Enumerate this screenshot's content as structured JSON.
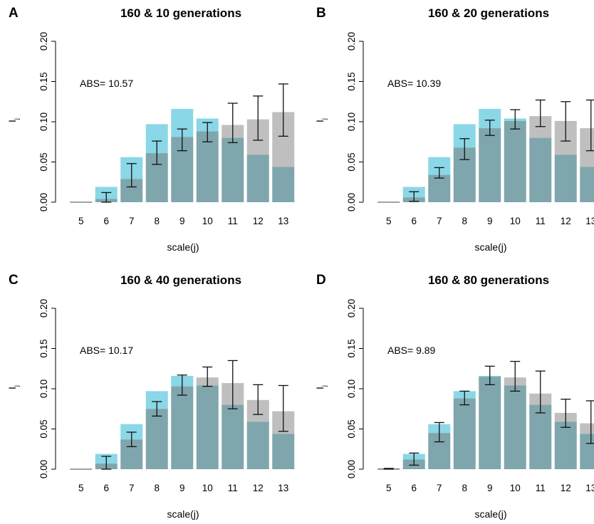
{
  "colors": {
    "observed_bar": "#8ad7e7",
    "simulated_bar": "#bfbfbf",
    "overlap": "#7fa6ac",
    "error_bar": "#111111"
  },
  "chart_data": [
    {
      "type": "bar",
      "panel": "A",
      "title": "160 &  10 generations",
      "xlabel": "scale(j)",
      "ylabel": "I",
      "ylabel_sub": "j",
      "categories": [
        "5",
        "6",
        "7",
        "8",
        "9",
        "10",
        "11",
        "12",
        "13"
      ],
      "ylim": [
        0,
        0.2
      ],
      "yticks": [
        "0.00",
        "0.05",
        "0.10",
        "0.15",
        "0.20"
      ],
      "annotation": "ABS= 10.57",
      "series": [
        {
          "values": [
            0.0,
            0.019,
            0.056,
            0.097,
            0.116,
            0.104,
            0.08,
            0.059,
            0.044
          ]
        },
        {
          "values": [
            0.0,
            0.004,
            0.029,
            0.061,
            0.081,
            0.088,
            0.096,
            0.103,
            0.112
          ],
          "err_low": [
            0.0,
            0.0,
            0.019,
            0.047,
            0.064,
            0.075,
            0.074,
            0.077,
            0.082
          ],
          "err_high": [
            0.0,
            0.012,
            0.048,
            0.076,
            0.091,
            0.099,
            0.123,
            0.132,
            0.147
          ]
        }
      ]
    },
    {
      "type": "bar",
      "panel": "B",
      "title": "160 &  20 generations",
      "xlabel": "scale(j)",
      "ylabel": "I",
      "ylabel_sub": "j",
      "categories": [
        "5",
        "6",
        "7",
        "8",
        "9",
        "10",
        "11",
        "12",
        "13"
      ],
      "ylim": [
        0,
        0.2
      ],
      "yticks": [
        "0.00",
        "0.05",
        "0.10",
        "0.15",
        "0.20"
      ],
      "annotation": "ABS= 10.39",
      "series": [
        {
          "values": [
            0.0,
            0.019,
            0.056,
            0.097,
            0.116,
            0.104,
            0.08,
            0.059,
            0.044
          ]
        },
        {
          "values": [
            0.0,
            0.006,
            0.034,
            0.068,
            0.092,
            0.101,
            0.107,
            0.101,
            0.092
          ],
          "err_low": [
            0.0,
            0.001,
            0.03,
            0.053,
            0.083,
            0.091,
            0.094,
            0.076,
            0.064
          ],
          "err_high": [
            0.0,
            0.013,
            0.043,
            0.079,
            0.102,
            0.115,
            0.127,
            0.125,
            0.127
          ]
        }
      ]
    },
    {
      "type": "bar",
      "panel": "C",
      "title": "160 &  40 generations",
      "xlabel": "scale(j)",
      "ylabel": "I",
      "ylabel_sub": "j",
      "categories": [
        "5",
        "6",
        "7",
        "8",
        "9",
        "10",
        "11",
        "12",
        "13"
      ],
      "ylim": [
        0,
        0.2
      ],
      "yticks": [
        "0.00",
        "0.05",
        "0.10",
        "0.15",
        "0.20"
      ],
      "annotation": "ABS= 10.17",
      "series": [
        {
          "values": [
            0.0,
            0.019,
            0.056,
            0.097,
            0.116,
            0.104,
            0.08,
            0.059,
            0.044
          ]
        },
        {
          "values": [
            0.0,
            0.007,
            0.037,
            0.075,
            0.103,
            0.114,
            0.107,
            0.086,
            0.072
          ],
          "err_low": [
            0.0,
            0.0,
            0.028,
            0.066,
            0.092,
            0.103,
            0.075,
            0.068,
            0.047
          ],
          "err_high": [
            0.0,
            0.016,
            0.046,
            0.084,
            0.117,
            0.127,
            0.135,
            0.105,
            0.104
          ]
        }
      ]
    },
    {
      "type": "bar",
      "panel": "D",
      "title": "160 &  80 generations",
      "xlabel": "scale(j)",
      "ylabel": "I",
      "ylabel_sub": "j",
      "categories": [
        "5",
        "6",
        "7",
        "8",
        "9",
        "10",
        "11",
        "12",
        "13"
      ],
      "ylim": [
        0,
        0.2
      ],
      "yticks": [
        "0.00",
        "0.05",
        "0.10",
        "0.15",
        "0.20"
      ],
      "annotation": "ABS= 9.89",
      "series": [
        {
          "values": [
            0.0,
            0.019,
            0.056,
            0.097,
            0.116,
            0.104,
            0.08,
            0.059,
            0.044
          ]
        },
        {
          "values": [
            0.001,
            0.012,
            0.045,
            0.088,
            0.115,
            0.114,
            0.094,
            0.07,
            0.057
          ],
          "err_low": [
            0.0,
            0.005,
            0.034,
            0.08,
            0.105,
            0.097,
            0.07,
            0.052,
            0.032
          ],
          "err_high": [
            0.001,
            0.02,
            0.058,
            0.097,
            0.128,
            0.134,
            0.122,
            0.087,
            0.085
          ]
        }
      ]
    }
  ]
}
